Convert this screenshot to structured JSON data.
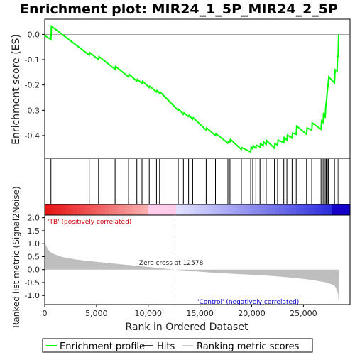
{
  "title": "Enrichment plot: MIR24_1_5P_MIR24_2_5P",
  "colors": {
    "es_line": "#00ff00",
    "hits": "#000000",
    "metric_fill": "#bebebe",
    "zero_cross": "#c8c8c8",
    "pos_label": "#cc0000",
    "neg_label": "#0000cc",
    "frame": "#000000"
  },
  "chart_data": [
    {
      "type": "line",
      "panel": "enrichment",
      "ylabel": "Enrichment score (ES)",
      "ylim": [
        -0.49,
        0.06
      ],
      "xlim": [
        0,
        29500
      ],
      "yticks": [
        0.0,
        -0.1,
        -0.2,
        -0.3,
        -0.4
      ],
      "ytick_labels": [
        "0.0",
        "-0.1",
        "-0.2",
        "-0.3",
        "-0.4"
      ],
      "series": [
        {
          "x": [
            0,
            600,
            650,
            4300,
            4350,
            5200,
            5250,
            6800,
            6850,
            8100,
            8150,
            8900,
            8950,
            9400,
            9450,
            10100,
            10150,
            10800,
            10850,
            11100,
            11150,
            12900,
            12950,
            13400,
            13450,
            13900,
            13950,
            14300,
            14350,
            15600,
            15650,
            16500,
            16550,
            17700,
            17750,
            17900,
            17950,
            19000,
            19050,
            19900,
            19950,
            20100,
            20150,
            20400,
            20450,
            20800,
            20850,
            21100,
            21150,
            21400,
            21450,
            22200,
            22250,
            22500,
            22550,
            23100,
            23150,
            23400,
            23450,
            23900,
            23950,
            24300,
            24350,
            25300,
            25350,
            25800,
            25850,
            26700,
            26750,
            26900,
            26950,
            27100,
            27150,
            27200,
            27250,
            27300,
            27350,
            27400,
            27450,
            28000,
            28050,
            28250,
            28300,
            28350,
            28400
          ],
          "y": [
            -0.005,
            -0.02,
            0.032,
            -0.082,
            -0.072,
            -0.1,
            -0.088,
            -0.138,
            -0.127,
            -0.168,
            -0.158,
            -0.185,
            -0.178,
            -0.193,
            -0.185,
            -0.21,
            -0.205,
            -0.228,
            -0.222,
            -0.232,
            -0.228,
            -0.3,
            -0.296,
            -0.316,
            -0.31,
            -0.325,
            -0.32,
            -0.335,
            -0.33,
            -0.378,
            -0.37,
            -0.4,
            -0.393,
            -0.43,
            -0.425,
            -0.425,
            -0.415,
            -0.455,
            -0.448,
            -0.465,
            -0.445,
            -0.452,
            -0.44,
            -0.45,
            -0.438,
            -0.445,
            -0.432,
            -0.44,
            -0.425,
            -0.435,
            -0.42,
            -0.45,
            -0.432,
            -0.438,
            -0.418,
            -0.428,
            -0.408,
            -0.418,
            -0.398,
            -0.41,
            -0.39,
            -0.395,
            -0.362,
            -0.395,
            -0.37,
            -0.378,
            -0.35,
            -0.375,
            -0.342,
            -0.348,
            -0.31,
            -0.33,
            -0.29,
            -0.27,
            -0.25,
            -0.23,
            -0.21,
            -0.19,
            -0.168,
            -0.192,
            -0.14,
            -0.145,
            -0.085,
            -0.09,
            0.0
          ]
        }
      ]
    },
    {
      "type": "scatter",
      "panel": "hits",
      "x": [
        600,
        4300,
        5200,
        6800,
        8100,
        8900,
        9400,
        10100,
        10800,
        11100,
        12900,
        13400,
        13900,
        14300,
        15600,
        16500,
        17700,
        17900,
        19000,
        19900,
        20100,
        20400,
        20800,
        21100,
        21400,
        22200,
        22500,
        23100,
        23400,
        23900,
        24300,
        25300,
        25800,
        26700,
        26900,
        27100,
        27200,
        27300,
        27400,
        28000,
        28250,
        28400
      ]
    },
    {
      "type": "area",
      "panel": "ranked_metric",
      "xlabel": "Rank in Ordered Dataset",
      "ylabel": "Ranked list metric (Signal2Noise)",
      "ylim": [
        -1.35,
        2.1
      ],
      "xlim": [
        0,
        29500
      ],
      "yticks": [
        2.0,
        1.5,
        1.0,
        0.5,
        0.0,
        -0.5,
        -1.0
      ],
      "ytick_labels": [
        "2.0",
        "1.5",
        "1.0",
        "0.5",
        "0.0",
        "-0.5",
        "-1.0"
      ],
      "xticks": [
        0,
        5000,
        10000,
        15000,
        20000,
        25000
      ],
      "xtick_labels": [
        "0",
        "5,000",
        "10,000",
        "15,000",
        "20,000",
        "25,000"
      ],
      "x": [
        0,
        100,
        300,
        600,
        1000,
        1500,
        2000,
        3000,
        4000,
        5000,
        6000,
        7000,
        8000,
        9000,
        10000,
        11000,
        12000,
        12578,
        13000,
        14000,
        15000,
        16000,
        17000,
        18000,
        19000,
        20000,
        21000,
        22000,
        23000,
        24000,
        25000,
        26000,
        27000,
        27500,
        28000,
        28200,
        28350,
        28400
      ],
      "values": [
        1.1,
        0.95,
        0.78,
        0.66,
        0.58,
        0.51,
        0.46,
        0.39,
        0.34,
        0.3,
        0.26,
        0.22,
        0.18,
        0.14,
        0.1,
        0.06,
        0.02,
        0.0,
        -0.02,
        -0.05,
        -0.08,
        -0.11,
        -0.13,
        -0.16,
        -0.18,
        -0.2,
        -0.22,
        -0.25,
        -0.28,
        -0.32,
        -0.36,
        -0.41,
        -0.48,
        -0.53,
        -0.62,
        -0.75,
        -0.95,
        -1.28
      ],
      "annotations": {
        "zero_cross": "Zero cross at 12578",
        "positive": "'TB' (positively correlated)",
        "negative": "'Control' (negatively correlated)"
      }
    }
  ],
  "legend": {
    "placement": "bottom",
    "items": [
      {
        "label": "Enrichment profile",
        "style": "line",
        "color": "#00ff00"
      },
      {
        "label": "Hits",
        "style": "line",
        "color": "#000000"
      },
      {
        "label": "Ranking metric scores",
        "style": "line",
        "color": "#bebebe"
      }
    ]
  }
}
